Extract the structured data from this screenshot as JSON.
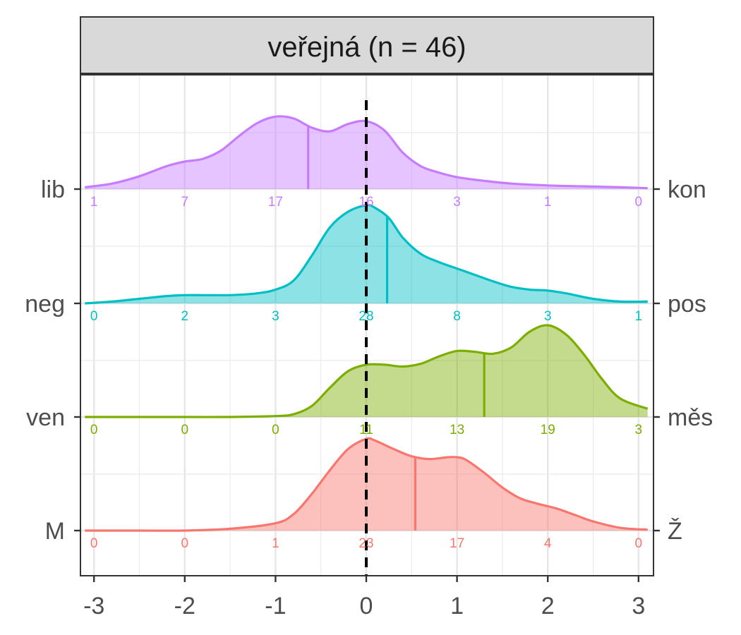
{
  "chart_data": {
    "type": "ridgeline",
    "title": "veřejná (n = 46)",
    "xlabel": "",
    "ylabel": "",
    "xlim": [
      -3.1,
      3.1
    ],
    "x_ticks": [
      -3,
      -2,
      -1,
      0,
      1,
      2,
      3
    ],
    "x_tick_labels": [
      "-3",
      "-2",
      "-1",
      "0",
      "1",
      "2",
      "3"
    ],
    "reference_line_x": 0,
    "grid": true,
    "legend": "none",
    "count_positions": [
      -3,
      -2,
      -1,
      0,
      1,
      2,
      3
    ],
    "series": [
      {
        "left_label": "lib",
        "right_label": "kon",
        "color": "#c77cff",
        "mean": -0.64,
        "counts": [
          "1",
          "7",
          "17",
          "16",
          "3",
          "1",
          "0"
        ],
        "density_x": [
          -3.1,
          -2.8,
          -2.5,
          -2.2,
          -2.0,
          -1.8,
          -1.6,
          -1.4,
          -1.2,
          -1.0,
          -0.8,
          -0.6,
          -0.4,
          -0.2,
          0.0,
          0.2,
          0.4,
          0.6,
          0.8,
          1.0,
          1.3,
          1.6,
          2.0,
          2.4,
          2.8,
          3.1
        ],
        "density_y": [
          0.02,
          0.06,
          0.14,
          0.25,
          0.3,
          0.33,
          0.42,
          0.58,
          0.72,
          0.79,
          0.77,
          0.67,
          0.63,
          0.71,
          0.74,
          0.64,
          0.4,
          0.25,
          0.18,
          0.13,
          0.09,
          0.06,
          0.04,
          0.03,
          0.02,
          0.01
        ]
      },
      {
        "left_label": "neg",
        "right_label": "pos",
        "color": "#00bfc4",
        "mean": 0.23,
        "counts": [
          "0",
          "2",
          "3",
          "28",
          "8",
          "3",
          "1"
        ],
        "density_x": [
          -3.1,
          -2.8,
          -2.5,
          -2.2,
          -2.0,
          -1.8,
          -1.5,
          -1.2,
          -1.0,
          -0.8,
          -0.6,
          -0.4,
          -0.2,
          0.0,
          0.1,
          0.25,
          0.4,
          0.6,
          0.8,
          1.0,
          1.2,
          1.4,
          1.6,
          1.8,
          2.0,
          2.2,
          2.5,
          2.8,
          3.1
        ],
        "density_y": [
          0.0,
          0.02,
          0.05,
          0.08,
          0.09,
          0.09,
          0.09,
          0.11,
          0.15,
          0.25,
          0.52,
          0.83,
          1.0,
          1.07,
          1.04,
          0.93,
          0.72,
          0.54,
          0.45,
          0.38,
          0.31,
          0.24,
          0.18,
          0.15,
          0.14,
          0.11,
          0.05,
          0.02,
          0.02
        ]
      },
      {
        "left_label": "ven",
        "right_label": "měs",
        "color": "#7cae00",
        "mean": 1.3,
        "counts": [
          "0",
          "0",
          "0",
          "11",
          "13",
          "19",
          "3"
        ],
        "density_x": [
          -3.1,
          -2.5,
          -2.0,
          -1.5,
          -1.0,
          -0.8,
          -0.6,
          -0.4,
          -0.2,
          0.0,
          0.2,
          0.4,
          0.6,
          0.8,
          1.0,
          1.2,
          1.4,
          1.6,
          1.8,
          2.0,
          2.2,
          2.4,
          2.6,
          2.8,
          3.1
        ],
        "density_y": [
          0.0,
          0.0,
          0.0,
          0.0,
          0.01,
          0.03,
          0.12,
          0.32,
          0.5,
          0.57,
          0.57,
          0.55,
          0.58,
          0.66,
          0.72,
          0.71,
          0.69,
          0.76,
          0.93,
          1.0,
          0.9,
          0.68,
          0.41,
          0.2,
          0.09
        ]
      },
      {
        "left_label": "M",
        "right_label": "Ž",
        "color": "#f8766d",
        "mean": 0.54,
        "counts": [
          "0",
          "0",
          "1",
          "23",
          "17",
          "4",
          "0"
        ],
        "density_x": [
          -3.1,
          -2.5,
          -2.0,
          -1.5,
          -1.0,
          -0.8,
          -0.6,
          -0.4,
          -0.2,
          0.0,
          0.1,
          0.3,
          0.5,
          0.7,
          0.9,
          1.0,
          1.1,
          1.3,
          1.5,
          1.7,
          1.9,
          2.1,
          2.3,
          2.5,
          2.8,
          3.1
        ],
        "density_y": [
          0.0,
          0.0,
          0.0,
          0.02,
          0.08,
          0.18,
          0.4,
          0.66,
          0.89,
          1.0,
          0.98,
          0.89,
          0.81,
          0.78,
          0.8,
          0.8,
          0.77,
          0.63,
          0.47,
          0.35,
          0.29,
          0.24,
          0.17,
          0.1,
          0.03,
          0.01
        ]
      }
    ]
  }
}
